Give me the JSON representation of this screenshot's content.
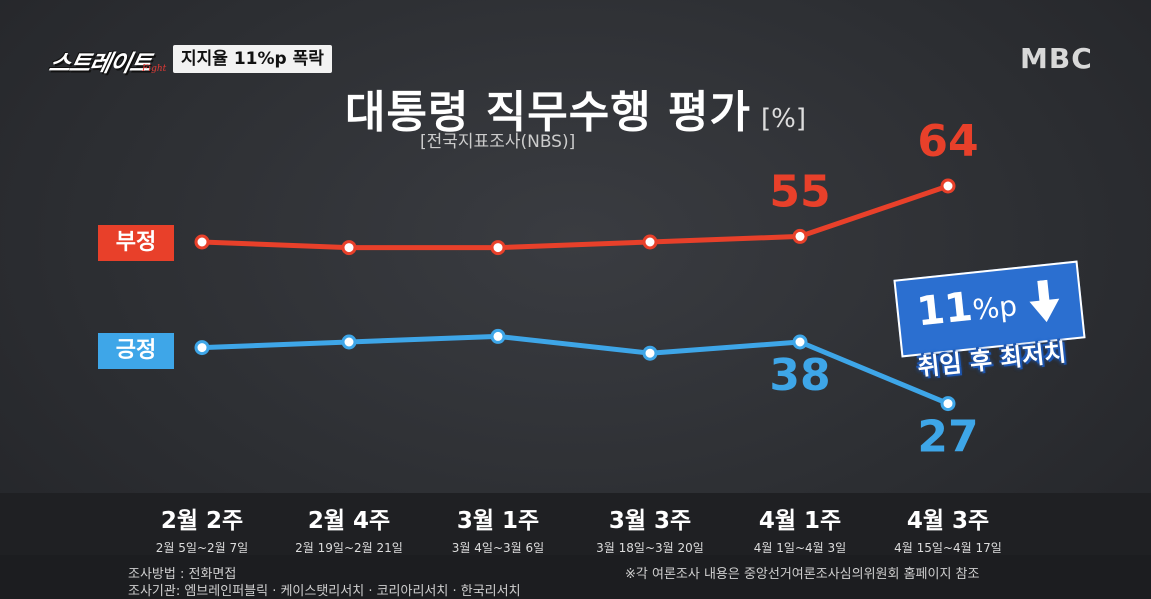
{
  "header": {
    "program_logo": "스트레이트",
    "program_logo_sub": "Fight",
    "tag": "지지율 11%p 폭락",
    "broadcaster": "MBC"
  },
  "chart_data": {
    "type": "line",
    "title": "대통령 직무수행 평가",
    "unit": "[%]",
    "subtitle": "[전국지표조사(NBS)]",
    "categories": [
      "2월 2주",
      "2월 4주",
      "3월 1주",
      "3월 3주",
      "4월 1주",
      "4월 3주"
    ],
    "category_dates": [
      "2월 5일~2월 7일",
      "2월 19일~2월 21일",
      "3월 4일~3월 6일",
      "3월 18일~3월 20일",
      "4월 1일~4월 3일",
      "4월 15일~4월 17일"
    ],
    "series": [
      {
        "name": "부정",
        "color": "#e8402a",
        "values": [
          54,
          53,
          53,
          54,
          55,
          64
        ],
        "labels": [
          null,
          null,
          null,
          null,
          "55",
          "64"
        ]
      },
      {
        "name": "긍정",
        "color": "#3ea6e8",
        "values": [
          37,
          38,
          39,
          36,
          38,
          27
        ],
        "labels": [
          null,
          null,
          null,
          null,
          "38",
          "27"
        ]
      }
    ],
    "grid": false,
    "legend": "left"
  },
  "callout": {
    "value": "11",
    "unit": "%p",
    "note": "취임 후 최저치"
  },
  "footer": {
    "method": "조사방법 : 전화면접",
    "agencies": "조사기관: 엠브레인퍼블릭 · 케이스탯리서치 · 코리아리서치 · 한국리서치",
    "note": "※각 여론조사 내용은 중앙선거여론조사심의위원회 홈페이지 참조"
  }
}
